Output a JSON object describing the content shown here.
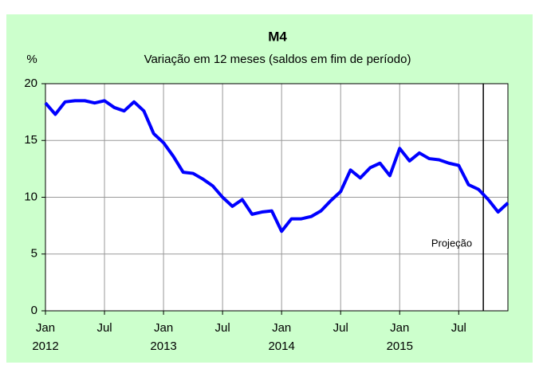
{
  "chart_data": {
    "type": "line",
    "title": "M4",
    "subtitle": "Variação  em 12 meses (saldos em fim de período)",
    "y_unit": "%",
    "categories": [
      "Jan 2012",
      null,
      null,
      null,
      null,
      null,
      "Jul",
      null,
      null,
      null,
      null,
      null,
      "Jan 2013",
      null,
      null,
      null,
      null,
      null,
      "Jul",
      null,
      null,
      null,
      null,
      null,
      "Jan 2014",
      null,
      null,
      null,
      null,
      null,
      "Jul",
      null,
      null,
      null,
      null,
      null,
      "Jan 2015",
      null,
      null,
      null,
      null,
      null,
      "Jul",
      null,
      null,
      null,
      null,
      null
    ],
    "series": [
      {
        "name": "M4",
        "color": "#0000ff",
        "values": [
          18.3,
          17.3,
          18.4,
          18.5,
          18.5,
          18.3,
          18.5,
          17.9,
          17.6,
          18.4,
          17.6,
          15.6,
          14.8,
          13.6,
          12.2,
          12.1,
          11.6,
          11.0,
          10.0,
          9.2,
          9.8,
          8.5,
          8.7,
          8.8,
          7.0,
          8.1,
          8.1,
          8.3,
          8.8,
          9.7,
          10.5,
          12.4,
          11.7,
          12.6,
          13.0,
          11.9,
          14.3,
          13.2,
          13.9,
          13.4,
          13.3,
          13.0,
          12.8,
          11.1,
          10.7,
          9.8,
          8.7,
          9.5
        ]
      }
    ],
    "ylim": [
      0,
      20
    ],
    "yticks": [
      0,
      5,
      10,
      15,
      20
    ],
    "grid": true,
    "projection": {
      "x": 44.5,
      "label": "Projeção"
    }
  }
}
